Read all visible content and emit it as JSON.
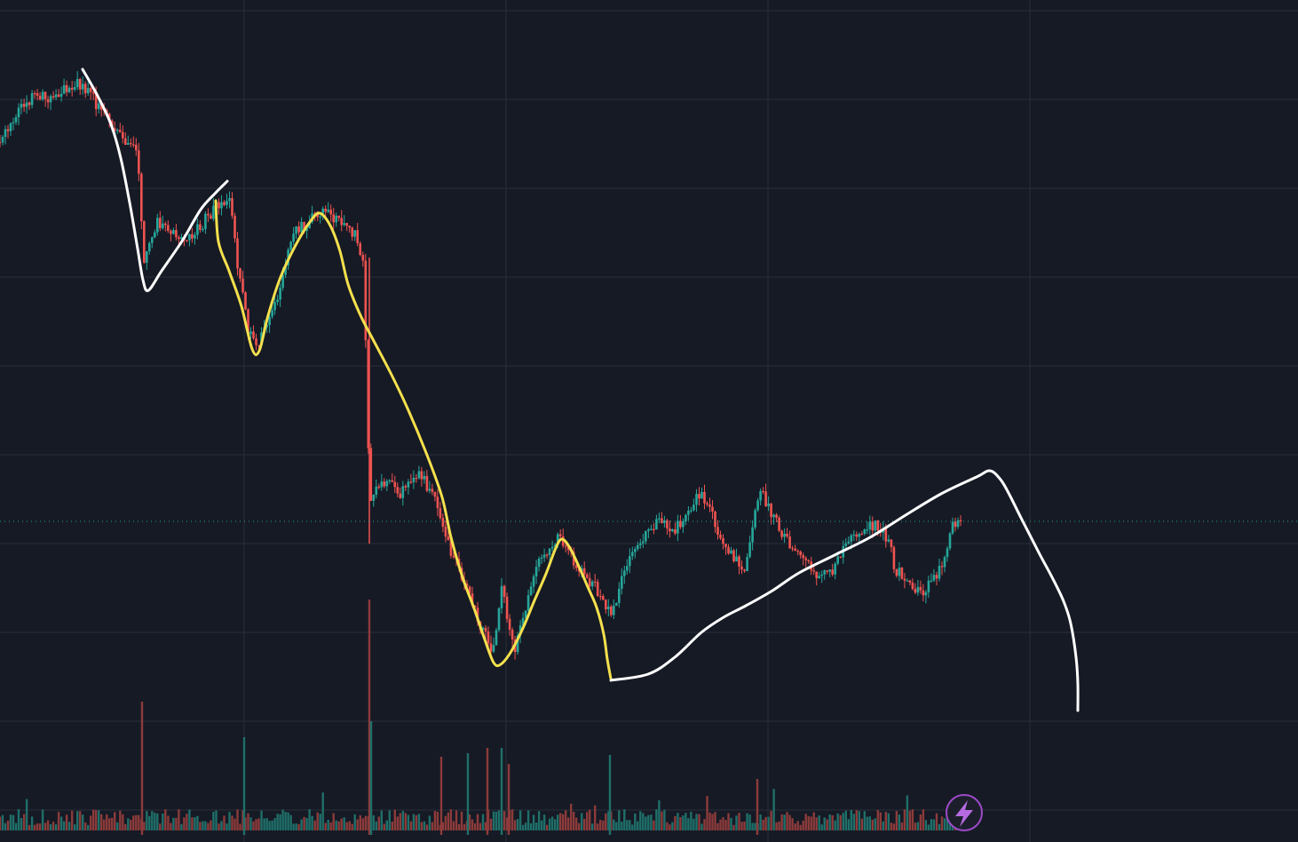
{
  "colors": {
    "background": "#161a25",
    "grid": "#2a2e39",
    "up": "#26a69a",
    "down": "#ef5350",
    "volume_up": "#1f6f69",
    "volume_down": "#8c3b3a",
    "last_price_line": "#26a69a",
    "drawing_white": "#ffffff",
    "drawing_yellow": "#f4e04d",
    "badge_accent": "#9c4ac8"
  },
  "icons": {
    "badge": "lightning-icon"
  },
  "chart_data": {
    "type": "candlestick",
    "grid": true,
    "legend": "none",
    "ylim": [
      0,
      948
    ],
    "bar_count": 360,
    "last_price": 587,
    "anchors": [
      [
        0,
        160
      ],
      [
        22,
        125
      ],
      [
        40,
        105
      ],
      [
        60,
        110
      ],
      [
        85,
        92
      ],
      [
        100,
        105
      ],
      [
        118,
        130
      ],
      [
        140,
        155
      ],
      [
        155,
        175
      ],
      [
        162,
        300
      ],
      [
        178,
        250
      ],
      [
        210,
        272
      ],
      [
        245,
        232
      ],
      [
        258,
        222
      ],
      [
        268,
        300
      ],
      [
        280,
        375
      ],
      [
        292,
        385
      ],
      [
        310,
        345
      ],
      [
        330,
        265
      ],
      [
        360,
        240
      ],
      [
        380,
        245
      ],
      [
        400,
        265
      ],
      [
        410,
        300
      ],
      [
        416,
        560
      ],
      [
        430,
        540
      ],
      [
        450,
        555
      ],
      [
        470,
        530
      ],
      [
        490,
        560
      ],
      [
        500,
        600
      ],
      [
        520,
        650
      ],
      [
        540,
        700
      ],
      [
        555,
        735
      ],
      [
        565,
        660
      ],
      [
        580,
        735
      ],
      [
        600,
        650
      ],
      [
        615,
        620
      ],
      [
        630,
        605
      ],
      [
        650,
        640
      ],
      [
        670,
        660
      ],
      [
        688,
        695
      ],
      [
        710,
        620
      ],
      [
        740,
        585
      ],
      [
        760,
        595
      ],
      [
        790,
        555
      ],
      [
        800,
        575
      ],
      [
        815,
        615
      ],
      [
        840,
        640
      ],
      [
        855,
        550
      ],
      [
        870,
        580
      ],
      [
        880,
        600
      ],
      [
        900,
        625
      ],
      [
        920,
        645
      ],
      [
        940,
        640
      ],
      [
        960,
        600
      ],
      [
        985,
        590
      ],
      [
        1000,
        605
      ],
      [
        1008,
        640
      ],
      [
        1020,
        650
      ],
      [
        1030,
        670
      ],
      [
        1045,
        660
      ],
      [
        1060,
        640
      ],
      [
        1070,
        598
      ],
      [
        1082,
        582
      ]
    ],
    "volume_base": 915,
    "volume_spikes": [
      [
        160,
        790
      ],
      [
        275,
        830
      ],
      [
        416,
        675
      ],
      [
        418,
        812
      ],
      [
        497,
        852
      ],
      [
        527,
        848
      ],
      [
        549,
        842
      ],
      [
        565,
        842
      ],
      [
        573,
        860
      ],
      [
        687,
        850
      ],
      [
        853,
        877
      ]
    ]
  },
  "drawings": [
    {
      "name": "white-trend-line-1",
      "color": "white",
      "width": 3,
      "points": [
        [
          93,
          78
        ],
        [
          110,
          108
        ],
        [
          125,
          140
        ],
        [
          136,
          178
        ],
        [
          146,
          228
        ],
        [
          155,
          280
        ],
        [
          161,
          315
        ],
        [
          167,
          327
        ],
        [
          182,
          305
        ],
        [
          206,
          270
        ],
        [
          226,
          236
        ],
        [
          242,
          218
        ],
        [
          256,
          204
        ]
      ]
    },
    {
      "name": "yellow-swing-line",
      "color": "yellow",
      "width": 3,
      "points": [
        [
          243,
          226
        ],
        [
          246,
          272
        ],
        [
          258,
          305
        ],
        [
          272,
          345
        ],
        [
          284,
          393
        ],
        [
          292,
          395
        ],
        [
          302,
          355
        ],
        [
          316,
          312
        ],
        [
          333,
          276
        ],
        [
          349,
          250
        ],
        [
          360,
          240
        ],
        [
          372,
          254
        ],
        [
          383,
          283
        ],
        [
          392,
          320
        ],
        [
          406,
          355
        ],
        [
          420,
          382
        ],
        [
          440,
          420
        ],
        [
          460,
          462
        ],
        [
          482,
          515
        ],
        [
          498,
          560
        ],
        [
          508,
          605
        ],
        [
          521,
          650
        ],
        [
          534,
          685
        ],
        [
          546,
          720
        ],
        [
          556,
          746
        ],
        [
          564,
          748
        ],
        [
          576,
          733
        ],
        [
          590,
          705
        ],
        [
          602,
          676
        ],
        [
          615,
          646
        ],
        [
          626,
          617
        ],
        [
          633,
          607
        ],
        [
          642,
          617
        ],
        [
          653,
          640
        ],
        [
          663,
          663
        ],
        [
          672,
          684
        ],
        [
          680,
          714
        ],
        [
          684,
          742
        ],
        [
          688,
          764
        ]
      ]
    },
    {
      "name": "white-trend-line-2",
      "color": "white",
      "width": 3,
      "points": [
        [
          688,
          766
        ],
        [
          730,
          759
        ],
        [
          760,
          740
        ],
        [
          790,
          712
        ],
        [
          815,
          695
        ],
        [
          840,
          682
        ],
        [
          870,
          665
        ],
        [
          900,
          645
        ],
        [
          940,
          625
        ],
        [
          980,
          605
        ],
        [
          1020,
          580
        ],
        [
          1060,
          556
        ],
        [
          1100,
          537
        ],
        [
          1115,
          530
        ],
        [
          1127,
          540
        ],
        [
          1137,
          557
        ],
        [
          1150,
          583
        ],
        [
          1170,
          622
        ],
        [
          1185,
          650
        ],
        [
          1198,
          677
        ],
        [
          1206,
          702
        ],
        [
          1212,
          740
        ],
        [
          1214,
          770
        ],
        [
          1214,
          800
        ]
      ]
    }
  ]
}
